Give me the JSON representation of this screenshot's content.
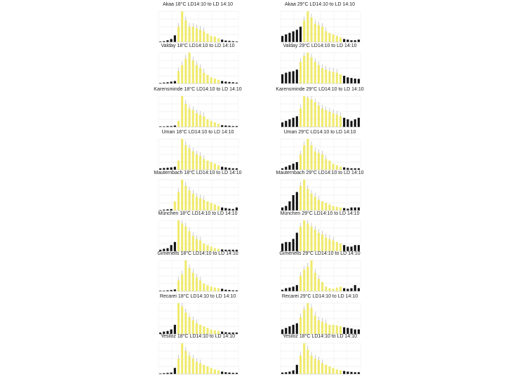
{
  "chart_data": [
    {
      "type": "bar",
      "title": "Akaa 18°C LD14:10 to LD 14:10",
      "highlight_color": "#f0ea6e",
      "base_color": "#111111",
      "values": [
        0.02,
        0.03,
        0.06,
        0.1,
        0.22,
        0.5,
        1.0,
        0.7,
        0.5,
        0.5,
        0.45,
        0.4,
        0.35,
        0.28,
        0.2,
        0.18,
        0.12,
        0.08,
        0.05,
        0.04,
        0.03,
        0.02
      ],
      "highlight": [
        0,
        0,
        0,
        0,
        0,
        1,
        1,
        1,
        1,
        1,
        1,
        1,
        1,
        1,
        1,
        1,
        1,
        0,
        0,
        0,
        0,
        0
      ]
    },
    {
      "type": "bar",
      "title": "Akaa 29°C LD14:10 to LD 14:10",
      "highlight_color": "#f0ea6e",
      "base_color": "#111111",
      "values": [
        0.2,
        0.25,
        0.3,
        0.35,
        0.4,
        0.5,
        0.7,
        1.0,
        0.8,
        0.6,
        0.55,
        0.5,
        0.35,
        0.3,
        0.25,
        0.2,
        0.15,
        0.1,
        0.08,
        0.06,
        0.06,
        0.08
      ],
      "highlight": [
        0,
        0,
        0,
        0,
        0,
        0,
        1,
        1,
        1,
        1,
        1,
        1,
        1,
        1,
        1,
        1,
        1,
        0,
        0,
        0,
        0,
        0
      ]
    },
    {
      "type": "bar",
      "title": "Valday 18°C LD14:10 to LD 14:10",
      "highlight_color": "#f0ea6e",
      "base_color": "#111111",
      "values": [
        0.02,
        0.03,
        0.04,
        0.06,
        0.08,
        0.4,
        0.6,
        0.8,
        1.0,
        0.75,
        0.6,
        0.5,
        0.35,
        0.28,
        0.2,
        0.16,
        0.12,
        0.08,
        0.06,
        0.05,
        0.04,
        0.03
      ],
      "highlight": [
        0,
        0,
        0,
        0,
        0,
        1,
        1,
        1,
        1,
        1,
        1,
        1,
        1,
        1,
        1,
        1,
        1,
        0,
        0,
        0,
        0,
        0
      ]
    },
    {
      "type": "bar",
      "title": "Valday 29°C LD14:10 to LD 14:10",
      "highlight_color": "#f0ea6e",
      "base_color": "#111111",
      "values": [
        0.3,
        0.35,
        0.38,
        0.4,
        0.45,
        0.7,
        0.9,
        1.0,
        0.85,
        0.7,
        0.6,
        0.5,
        0.45,
        0.4,
        0.38,
        0.35,
        0.3,
        0.25,
        0.2,
        0.18,
        0.16,
        0.15
      ],
      "highlight": [
        0,
        0,
        0,
        0,
        0,
        1,
        1,
        1,
        1,
        1,
        1,
        1,
        1,
        1,
        1,
        1,
        1,
        0,
        0,
        0,
        0,
        0
      ]
    },
    {
      "type": "bar",
      "title": "Karensminde 18°C LD14:10 to LD 14:10",
      "highlight_color": "#f0ea6e",
      "base_color": "#111111",
      "values": [
        0.02,
        0.02,
        0.03,
        0.03,
        0.05,
        0.2,
        1.0,
        0.75,
        0.6,
        0.55,
        0.45,
        0.4,
        0.35,
        0.25,
        0.2,
        0.15,
        0.1,
        0.06,
        0.05,
        0.04,
        0.03,
        0.03
      ],
      "highlight": [
        0,
        0,
        0,
        0,
        0,
        1,
        1,
        1,
        1,
        1,
        1,
        1,
        1,
        1,
        1,
        1,
        1,
        0,
        0,
        0,
        0,
        0
      ]
    },
    {
      "type": "bar",
      "title": "Karensminde 29°C LD14:10 to LD 14:10",
      "highlight_color": "#f0ea6e",
      "base_color": "#111111",
      "values": [
        0.15,
        0.2,
        0.25,
        0.3,
        0.35,
        0.6,
        1.0,
        0.95,
        0.9,
        0.8,
        0.7,
        0.6,
        0.55,
        0.5,
        0.45,
        0.4,
        0.35,
        0.3,
        0.25,
        0.2,
        0.25,
        0.3
      ],
      "highlight": [
        0,
        0,
        0,
        0,
        0,
        1,
        1,
        1,
        1,
        1,
        1,
        1,
        1,
        1,
        1,
        1,
        1,
        0,
        0,
        0,
        0,
        0
      ]
    },
    {
      "type": "bar",
      "title": "Uman 18°C LD14:10 to LD 14:10",
      "highlight_color": "#f0ea6e",
      "base_color": "#111111",
      "values": [
        0.05,
        0.06,
        0.07,
        0.08,
        0.1,
        0.3,
        1.0,
        0.8,
        0.7,
        0.6,
        0.5,
        0.45,
        0.35,
        0.3,
        0.25,
        0.2,
        0.15,
        0.1,
        0.08,
        0.06,
        0.05,
        0.05
      ],
      "highlight": [
        0,
        0,
        0,
        0,
        0,
        1,
        1,
        1,
        1,
        1,
        1,
        1,
        1,
        1,
        1,
        1,
        1,
        0,
        0,
        0,
        0,
        0
      ]
    },
    {
      "type": "bar",
      "title": "Uman 29°C LD14:10 to LD 14:10",
      "highlight_color": "#f0ea6e",
      "base_color": "#111111",
      "values": [
        0.05,
        0.1,
        0.15,
        0.2,
        0.25,
        0.5,
        0.8,
        1.0,
        0.8,
        0.6,
        0.55,
        0.5,
        0.35,
        0.3,
        0.2,
        0.15,
        0.1,
        0.08,
        0.06,
        0.05,
        0.05,
        0.05
      ],
      "highlight": [
        0,
        0,
        0,
        0,
        0,
        1,
        1,
        1,
        1,
        1,
        1,
        1,
        1,
        1,
        1,
        1,
        1,
        0,
        0,
        0,
        0,
        0
      ]
    },
    {
      "type": "bar",
      "title": "Mauternbach 18°C LD14:10 to LD 14:10",
      "highlight_color": "#f0ea6e",
      "base_color": "#111111",
      "values": [
        0.02,
        0.03,
        0.04,
        0.05,
        0.3,
        0.6,
        1.0,
        0.8,
        0.65,
        0.55,
        0.45,
        0.4,
        0.35,
        0.3,
        0.25,
        0.2,
        0.15,
        0.1,
        0.08,
        0.06,
        0.05,
        0.1
      ],
      "highlight": [
        0,
        0,
        0,
        0,
        1,
        1,
        1,
        1,
        1,
        1,
        1,
        1,
        1,
        1,
        1,
        1,
        1,
        0,
        0,
        0,
        0,
        0
      ]
    },
    {
      "type": "bar",
      "title": "Mauternbach 29°C LD14:10 to LD 14:10",
      "highlight_color": "#f0ea6e",
      "base_color": "#111111",
      "values": [
        0.1,
        0.15,
        0.3,
        0.5,
        0.6,
        0.8,
        1.0,
        0.7,
        0.55,
        0.45,
        0.35,
        0.3,
        0.25,
        0.2,
        0.15,
        0.12,
        0.1,
        0.08,
        0.06,
        0.1,
        0.1,
        0.1
      ],
      "highlight": [
        0,
        0,
        0,
        0,
        0,
        1,
        1,
        1,
        1,
        1,
        1,
        1,
        1,
        1,
        1,
        1,
        1,
        0,
        0,
        0,
        0,
        0
      ]
    },
    {
      "type": "bar",
      "title": "München 18°C LD14:10 to LD 14:10",
      "highlight_color": "#f0ea6e",
      "base_color": "#111111",
      "values": [
        0.05,
        0.08,
        0.1,
        0.2,
        0.3,
        1.0,
        0.9,
        0.8,
        0.65,
        0.5,
        0.4,
        0.35,
        0.25,
        0.2,
        0.15,
        0.1,
        0.08,
        0.06,
        0.05,
        0.05,
        0.05,
        0.05
      ],
      "highlight": [
        0,
        0,
        0,
        0,
        0,
        1,
        1,
        1,
        1,
        1,
        1,
        1,
        1,
        1,
        1,
        1,
        1,
        0,
        0,
        0,
        0,
        0
      ]
    },
    {
      "type": "bar",
      "title": "München 29°C LD14:10 to LD 14:10",
      "highlight_color": "#f0ea6e",
      "base_color": "#111111",
      "values": [
        0.25,
        0.3,
        0.3,
        0.4,
        0.6,
        0.8,
        1.0,
        0.9,
        0.8,
        0.7,
        0.6,
        0.55,
        0.45,
        0.4,
        0.35,
        0.3,
        0.25,
        0.2,
        0.15,
        0.15,
        0.2,
        0.2
      ],
      "highlight": [
        0,
        0,
        0,
        0,
        0,
        1,
        1,
        1,
        1,
        1,
        1,
        1,
        1,
        1,
        1,
        1,
        1,
        0,
        0,
        0,
        0,
        0
      ]
    },
    {
      "type": "bar",
      "title": "Gimenells 18°C LD14:10 to LD 14:10",
      "highlight_color": "#f0ea6e",
      "base_color": "#111111",
      "values": [
        0.02,
        0.02,
        0.03,
        0.04,
        0.06,
        0.35,
        0.55,
        1.0,
        0.75,
        0.6,
        0.45,
        0.35,
        0.25,
        0.2,
        0.15,
        0.12,
        0.1,
        0.08,
        0.05,
        0.04,
        0.03,
        0.03
      ],
      "highlight": [
        0,
        0,
        0,
        0,
        0,
        1,
        1,
        1,
        1,
        1,
        1,
        1,
        1,
        1,
        1,
        1,
        1,
        0,
        0,
        0,
        0,
        0
      ]
    },
    {
      "type": "bar",
      "title": "Gimenells 29°C LD14:10 to LD 14:10",
      "highlight_color": "#f0ea6e",
      "base_color": "#111111",
      "values": [
        0.05,
        0.1,
        0.12,
        0.15,
        0.2,
        0.5,
        0.7,
        0.8,
        1.0,
        0.6,
        0.4,
        0.3,
        0.15,
        0.1,
        0.08,
        0.12,
        0.15,
        0.1,
        0.08,
        0.1,
        0.2,
        0.1
      ],
      "highlight": [
        0,
        0,
        0,
        0,
        0,
        1,
        1,
        1,
        1,
        1,
        1,
        1,
        1,
        1,
        1,
        1,
        1,
        0,
        0,
        0,
        0,
        0
      ]
    },
    {
      "type": "bar",
      "title": "Recarei 18°C LD14:10 to LD 14:10",
      "highlight_color": "#f0ea6e",
      "base_color": "#111111",
      "values": [
        0.05,
        0.08,
        0.1,
        0.15,
        0.3,
        1.0,
        0.9,
        0.7,
        0.55,
        0.45,
        0.35,
        0.3,
        0.25,
        0.2,
        0.15,
        0.12,
        0.1,
        0.08,
        0.06,
        0.05,
        0.05,
        0.05
      ],
      "highlight": [
        0,
        0,
        0,
        0,
        0,
        1,
        1,
        1,
        1,
        1,
        1,
        1,
        1,
        1,
        1,
        1,
        1,
        0,
        0,
        0,
        0,
        0
      ]
    },
    {
      "type": "bar",
      "title": "Recarei 29°C LD14:10 to LD 14:10",
      "highlight_color": "#f0ea6e",
      "base_color": "#111111",
      "values": [
        0.15,
        0.2,
        0.25,
        0.3,
        0.35,
        0.55,
        0.8,
        1.0,
        0.85,
        0.6,
        0.45,
        0.4,
        0.35,
        0.3,
        0.3,
        0.28,
        0.25,
        0.22,
        0.2,
        0.18,
        0.15,
        0.15
      ],
      "highlight": [
        0,
        0,
        0,
        0,
        0,
        1,
        1,
        1,
        1,
        1,
        1,
        1,
        1,
        1,
        1,
        1,
        1,
        0,
        0,
        0,
        0,
        0
      ]
    },
    {
      "type": "bar",
      "title": "Yesiloz 18°C LD14:10 to LD 14:10",
      "highlight_color": "#f0ea6e",
      "base_color": "#111111",
      "values": [
        0.02,
        0.03,
        0.04,
        0.05,
        0.2,
        0.5,
        1.0,
        0.75,
        0.6,
        0.5,
        0.4,
        0.35,
        0.3,
        0.25,
        0.2,
        0.15,
        0.12,
        0.08,
        0.06,
        0.05,
        0.04,
        0.04
      ],
      "highlight": [
        0,
        0,
        0,
        0,
        0,
        1,
        1,
        1,
        1,
        1,
        1,
        1,
        1,
        1,
        1,
        1,
        1,
        0,
        0,
        0,
        0,
        0
      ]
    },
    {
      "type": "bar",
      "title": "Yesiloz 18°C LD14:10 to LD 14:10",
      "highlight_color": "#f0ea6e",
      "base_color": "#111111",
      "values": [
        0.05,
        0.06,
        0.08,
        0.12,
        0.3,
        0.6,
        1.0,
        0.8,
        0.6,
        0.5,
        0.45,
        0.35,
        0.3,
        0.25,
        0.2,
        0.15,
        0.12,
        0.1,
        0.08,
        0.07,
        0.06,
        0.06
      ],
      "highlight": [
        0,
        0,
        0,
        0,
        0,
        1,
        1,
        1,
        1,
        1,
        1,
        1,
        1,
        1,
        1,
        1,
        1,
        0,
        0,
        0,
        0,
        0
      ]
    }
  ]
}
